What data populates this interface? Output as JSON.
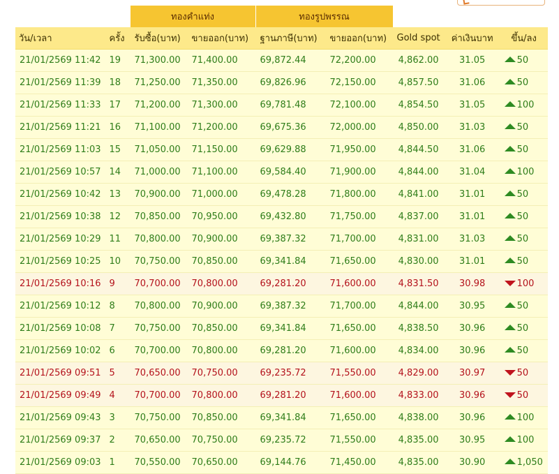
{
  "group_headers": {
    "bar_gold": "ทองคำแท่ง",
    "ornament_gold": "ทองรูปพรรณ"
  },
  "columns": {
    "datetime": "วัน/เวลา",
    "round": "ครั้ง",
    "bar_buy": "รับซื้อ(บาท)",
    "bar_sell": "ขายออก(บาท)",
    "orn_base": "ฐานภาษี(บาท)",
    "orn_sell": "ขายออก(บาท)",
    "gold_spot": "Gold spot",
    "thb_rate": "ค่าเงินบาท",
    "change": "ขึ้น/ลง"
  },
  "colors": {
    "up": "#2e7d19",
    "down": "#b4121c",
    "header_gold": "#f6c531",
    "header_light": "#fde98a"
  },
  "rows": [
    {
      "datetime": "21/01/2569 11:42",
      "round": "19",
      "bar_buy": "71,300.00",
      "bar_sell": "71,400.00",
      "orn_base": "69,872.44",
      "orn_sell": "72,200.00",
      "gold_spot": "4,862.00",
      "thb_rate": "31.05",
      "dir": "up",
      "change": "50"
    },
    {
      "datetime": "21/01/2569 11:39",
      "round": "18",
      "bar_buy": "71,250.00",
      "bar_sell": "71,350.00",
      "orn_base": "69,826.96",
      "orn_sell": "72,150.00",
      "gold_spot": "4,857.50",
      "thb_rate": "31.06",
      "dir": "up",
      "change": "50"
    },
    {
      "datetime": "21/01/2569 11:33",
      "round": "17",
      "bar_buy": "71,200.00",
      "bar_sell": "71,300.00",
      "orn_base": "69,781.48",
      "orn_sell": "72,100.00",
      "gold_spot": "4,854.50",
      "thb_rate": "31.05",
      "dir": "up",
      "change": "100"
    },
    {
      "datetime": "21/01/2569 11:21",
      "round": "16",
      "bar_buy": "71,100.00",
      "bar_sell": "71,200.00",
      "orn_base": "69,675.36",
      "orn_sell": "72,000.00",
      "gold_spot": "4,850.00",
      "thb_rate": "31.03",
      "dir": "up",
      "change": "50"
    },
    {
      "datetime": "21/01/2569 11:03",
      "round": "15",
      "bar_buy": "71,050.00",
      "bar_sell": "71,150.00",
      "orn_base": "69,629.88",
      "orn_sell": "71,950.00",
      "gold_spot": "4,844.50",
      "thb_rate": "31.06",
      "dir": "up",
      "change": "50"
    },
    {
      "datetime": "21/01/2569 10:57",
      "round": "14",
      "bar_buy": "71,000.00",
      "bar_sell": "71,100.00",
      "orn_base": "69,584.40",
      "orn_sell": "71,900.00",
      "gold_spot": "4,844.00",
      "thb_rate": "31.04",
      "dir": "up",
      "change": "100"
    },
    {
      "datetime": "21/01/2569 10:42",
      "round": "13",
      "bar_buy": "70,900.00",
      "bar_sell": "71,000.00",
      "orn_base": "69,478.28",
      "orn_sell": "71,800.00",
      "gold_spot": "4,841.00",
      "thb_rate": "31.01",
      "dir": "up",
      "change": "50"
    },
    {
      "datetime": "21/01/2569 10:38",
      "round": "12",
      "bar_buy": "70,850.00",
      "bar_sell": "70,950.00",
      "orn_base": "69,432.80",
      "orn_sell": "71,750.00",
      "gold_spot": "4,837.00",
      "thb_rate": "31.01",
      "dir": "up",
      "change": "50"
    },
    {
      "datetime": "21/01/2569 10:29",
      "round": "11",
      "bar_buy": "70,800.00",
      "bar_sell": "70,900.00",
      "orn_base": "69,387.32",
      "orn_sell": "71,700.00",
      "gold_spot": "4,831.00",
      "thb_rate": "31.03",
      "dir": "up",
      "change": "50"
    },
    {
      "datetime": "21/01/2569 10:25",
      "round": "10",
      "bar_buy": "70,750.00",
      "bar_sell": "70,850.00",
      "orn_base": "69,341.84",
      "orn_sell": "71,650.00",
      "gold_spot": "4,830.00",
      "thb_rate": "31.01",
      "dir": "up",
      "change": "50"
    },
    {
      "datetime": "21/01/2569 10:16",
      "round": "9",
      "bar_buy": "70,700.00",
      "bar_sell": "70,800.00",
      "orn_base": "69,281.20",
      "orn_sell": "71,600.00",
      "gold_spot": "4,831.50",
      "thb_rate": "30.98",
      "dir": "down",
      "change": "100"
    },
    {
      "datetime": "21/01/2569 10:12",
      "round": "8",
      "bar_buy": "70,800.00",
      "bar_sell": "70,900.00",
      "orn_base": "69,387.32",
      "orn_sell": "71,700.00",
      "gold_spot": "4,844.00",
      "thb_rate": "30.95",
      "dir": "up",
      "change": "50"
    },
    {
      "datetime": "21/01/2569 10:08",
      "round": "7",
      "bar_buy": "70,750.00",
      "bar_sell": "70,850.00",
      "orn_base": "69,341.84",
      "orn_sell": "71,650.00",
      "gold_spot": "4,838.50",
      "thb_rate": "30.96",
      "dir": "up",
      "change": "50"
    },
    {
      "datetime": "21/01/2569 10:02",
      "round": "6",
      "bar_buy": "70,700.00",
      "bar_sell": "70,800.00",
      "orn_base": "69,281.20",
      "orn_sell": "71,600.00",
      "gold_spot": "4,834.00",
      "thb_rate": "30.96",
      "dir": "up",
      "change": "50"
    },
    {
      "datetime": "21/01/2569 09:51",
      "round": "5",
      "bar_buy": "70,650.00",
      "bar_sell": "70,750.00",
      "orn_base": "69,235.72",
      "orn_sell": "71,550.00",
      "gold_spot": "4,829.00",
      "thb_rate": "30.97",
      "dir": "down",
      "change": "50"
    },
    {
      "datetime": "21/01/2569 09:49",
      "round": "4",
      "bar_buy": "70,700.00",
      "bar_sell": "70,800.00",
      "orn_base": "69,281.20",
      "orn_sell": "71,600.00",
      "gold_spot": "4,833.00",
      "thb_rate": "30.96",
      "dir": "down",
      "change": "50"
    },
    {
      "datetime": "21/01/2569 09:43",
      "round": "3",
      "bar_buy": "70,750.00",
      "bar_sell": "70,850.00",
      "orn_base": "69,341.84",
      "orn_sell": "71,650.00",
      "gold_spot": "4,838.00",
      "thb_rate": "30.96",
      "dir": "up",
      "change": "100"
    },
    {
      "datetime": "21/01/2569 09:37",
      "round": "2",
      "bar_buy": "70,650.00",
      "bar_sell": "70,750.00",
      "orn_base": "69,235.72",
      "orn_sell": "71,550.00",
      "gold_spot": "4,835.00",
      "thb_rate": "30.95",
      "dir": "up",
      "change": "100"
    },
    {
      "datetime": "21/01/2569 09:03",
      "round": "1",
      "bar_buy": "70,550.00",
      "bar_sell": "70,650.00",
      "orn_base": "69,144.76",
      "orn_sell": "71,450.00",
      "gold_spot": "4,835.00",
      "thb_rate": "30.90",
      "dir": "up",
      "change": "1,050"
    }
  ]
}
